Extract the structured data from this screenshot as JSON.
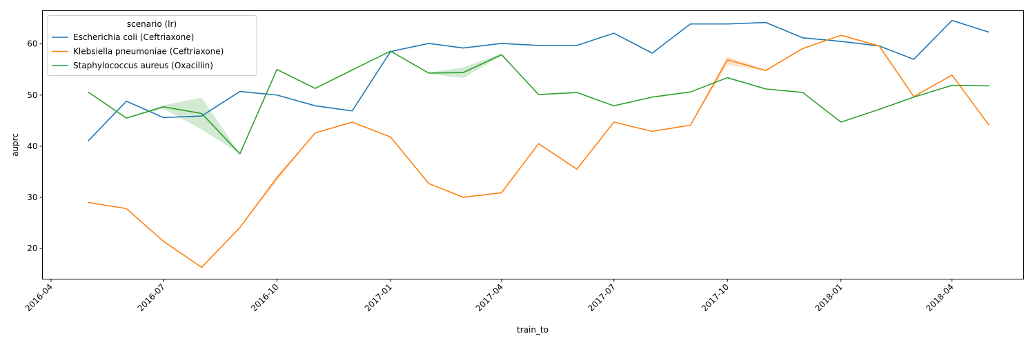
{
  "chart_data": {
    "type": "line",
    "title": "",
    "xlabel": "train_to",
    "ylabel": "auprc",
    "x_range": [
      "2016-03-25",
      "2018-05-29"
    ],
    "ylim": [
      14,
      66.5
    ],
    "grid": false,
    "x_ticks": [
      "2016-04",
      "2016-07",
      "2016-10",
      "2017-01",
      "2017-04",
      "2017-07",
      "2017-10",
      "2018-01",
      "2018-04"
    ],
    "y_ticks": [
      20,
      30,
      40,
      50,
      60
    ],
    "legend": {
      "title": "scenario (lr)",
      "placement": "upper-left"
    },
    "x": [
      "2016-05-01",
      "2016-06-01",
      "2016-07-01",
      "2016-08-01",
      "2016-09-01",
      "2016-10-01",
      "2016-11-01",
      "2016-12-01",
      "2017-01-01",
      "2017-02-01",
      "2017-03-01",
      "2017-04-01",
      "2017-05-01",
      "2017-06-01",
      "2017-07-01",
      "2017-08-01",
      "2017-09-01",
      "2017-10-01",
      "2017-11-01",
      "2017-12-01",
      "2018-01-01",
      "2018-02-01",
      "2018-03-01",
      "2018-04-01",
      "2018-05-01"
    ],
    "series": [
      {
        "name": "Escherichia coli (Ceftriaxone)",
        "color": "#1f77b4",
        "values": [
          41.0,
          48.8,
          45.6,
          45.9,
          50.7,
          50.0,
          47.9,
          46.9,
          58.5,
          60.1,
          59.2,
          60.1,
          59.7,
          59.7,
          62.1,
          58.2,
          63.9,
          63.9,
          64.2,
          61.2,
          60.5,
          59.6,
          57.0,
          64.6,
          62.3
        ],
        "ci_low": [
          41.0,
          48.8,
          45.6,
          45.9,
          50.7,
          50.0,
          47.9,
          46.9,
          58.5,
          60.1,
          59.2,
          60.1,
          59.7,
          59.7,
          62.1,
          58.2,
          63.9,
          63.9,
          64.2,
          61.2,
          60.5,
          59.6,
          57.0,
          64.6,
          62.3
        ],
        "ci_high": [
          41.0,
          48.8,
          45.6,
          45.9,
          50.7,
          50.0,
          47.9,
          46.9,
          58.5,
          60.1,
          59.2,
          60.1,
          59.7,
          59.7,
          62.1,
          58.2,
          63.9,
          63.9,
          64.2,
          61.2,
          60.5,
          59.6,
          57.0,
          64.6,
          62.3
        ]
      },
      {
        "name": "Klebsiella pneumoniae (Ceftriaxone)",
        "color": "#ff7f0e",
        "values": [
          29.0,
          27.8,
          21.4,
          16.3,
          24.1,
          33.8,
          42.6,
          44.7,
          41.8,
          32.7,
          30.0,
          30.9,
          40.5,
          35.5,
          44.7,
          42.9,
          44.1,
          56.9,
          54.8,
          59.1,
          61.7,
          59.6,
          49.7,
          53.9,
          44.1
        ],
        "ci_low": [
          29.0,
          27.8,
          21.4,
          16.3,
          24.1,
          33.2,
          42.6,
          44.7,
          41.8,
          32.7,
          30.0,
          30.9,
          40.5,
          35.5,
          44.7,
          42.9,
          44.1,
          55.9,
          54.8,
          59.1,
          61.7,
          59.6,
          49.7,
          53.9,
          44.1
        ],
        "ci_high": [
          29.0,
          27.8,
          21.4,
          16.3,
          24.1,
          34.3,
          42.6,
          44.7,
          41.8,
          32.7,
          30.0,
          30.9,
          40.5,
          35.5,
          44.7,
          42.9,
          44.1,
          57.6,
          54.8,
          59.1,
          61.7,
          59.6,
          49.7,
          53.9,
          44.1
        ]
      },
      {
        "name": "Staphylococcus aureus (Oxacillin)",
        "color": "#2ca02c",
        "values": [
          50.6,
          45.5,
          47.7,
          46.4,
          38.5,
          55.0,
          51.3,
          54.9,
          58.6,
          54.3,
          54.4,
          57.9,
          50.1,
          50.5,
          47.9,
          49.6,
          50.6,
          53.4,
          51.2,
          50.5,
          44.7,
          47.2,
          49.6,
          51.9,
          51.8
        ],
        "ci_low": [
          50.6,
          45.5,
          47.3,
          43.3,
          38.5,
          55.0,
          51.3,
          54.9,
          58.6,
          54.2,
          53.3,
          57.7,
          50.1,
          50.5,
          47.9,
          49.6,
          50.6,
          53.4,
          51.2,
          50.5,
          44.7,
          47.2,
          49.6,
          51.9,
          51.8
        ],
        "ci_high": [
          50.6,
          45.5,
          48.0,
          49.5,
          38.5,
          55.0,
          51.3,
          54.9,
          58.6,
          54.4,
          55.4,
          58.1,
          50.1,
          50.5,
          47.9,
          49.6,
          50.6,
          53.4,
          51.2,
          50.5,
          44.7,
          47.2,
          49.6,
          51.9,
          51.8
        ]
      }
    ]
  }
}
